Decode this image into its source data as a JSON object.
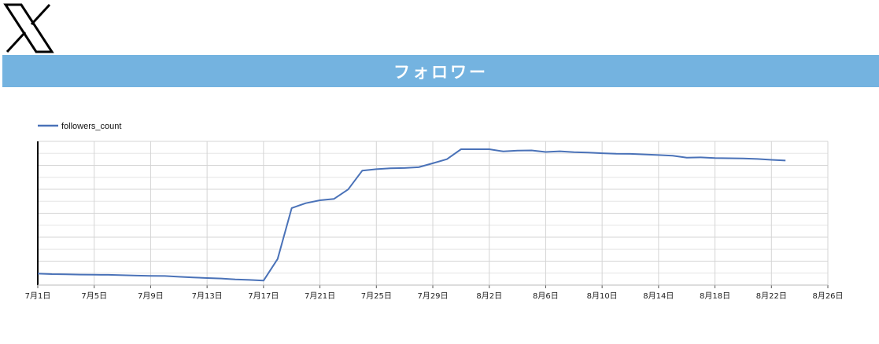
{
  "header": {
    "logo_icon": "x-logo-icon",
    "title": "フォロワー",
    "banner_color": "#74b3e0"
  },
  "chart_data": {
    "type": "line",
    "legend_position": "top-left",
    "grid": true,
    "series": [
      {
        "name": "followers_count",
        "color": "#4a72b8",
        "points": [
          [
            0,
            12
          ],
          [
            1,
            11.5
          ],
          [
            2,
            11.3
          ],
          [
            3,
            11
          ],
          [
            4,
            10.8
          ],
          [
            5,
            10.7
          ],
          [
            6,
            10.3
          ],
          [
            7,
            9.9
          ],
          [
            8,
            9.6
          ],
          [
            9,
            9.5
          ],
          [
            10,
            8.7
          ],
          [
            11,
            8
          ],
          [
            12,
            7.4
          ],
          [
            13,
            6.9
          ],
          [
            14,
            5.9
          ],
          [
            15,
            5.4
          ],
          [
            16,
            4.7
          ],
          [
            17,
            27.3
          ],
          [
            18,
            80.4
          ],
          [
            19,
            85.5
          ],
          [
            20,
            88.5
          ],
          [
            21,
            90
          ],
          [
            22,
            99.8
          ],
          [
            23,
            119.5
          ],
          [
            24,
            121
          ],
          [
            25,
            122
          ],
          [
            26,
            122.2
          ],
          [
            27,
            123
          ],
          [
            28,
            127.1
          ],
          [
            29,
            131.4
          ],
          [
            30,
            141.8
          ],
          [
            31,
            141.8
          ],
          [
            32,
            141.8
          ],
          [
            33,
            139.5
          ],
          [
            34,
            140.4
          ],
          [
            35,
            140.6
          ],
          [
            36,
            138.9
          ],
          [
            37,
            139.7
          ],
          [
            38,
            138.7
          ],
          [
            39,
            138.3
          ],
          [
            40,
            137.6
          ],
          [
            41,
            137.1
          ],
          [
            42,
            137
          ],
          [
            43,
            136.4
          ],
          [
            44,
            135.7
          ],
          [
            45,
            135.1
          ],
          [
            46,
            133
          ],
          [
            47,
            133.3
          ],
          [
            48,
            132.6
          ],
          [
            49,
            132.4
          ],
          [
            50,
            132.2
          ],
          [
            51,
            131.6
          ],
          [
            52,
            130.7
          ],
          [
            53,
            130
          ]
        ]
      }
    ],
    "x_tick_labels": [
      "7月1日",
      "7月5日",
      "7月9日",
      "7月13日",
      "7月17日",
      "7月21日",
      "7月25日",
      "7月29日",
      "8月2日",
      "8月6日",
      "8月10日",
      "8月14日",
      "8月18日",
      "8月22日",
      "8月26日"
    ],
    "y_tick_labels": [
      "",
      "",
      "",
      "",
      "",
      "",
      ""
    ],
    "xlim": [
      0,
      56
    ],
    "ylim": [
      0,
      150
    ]
  }
}
